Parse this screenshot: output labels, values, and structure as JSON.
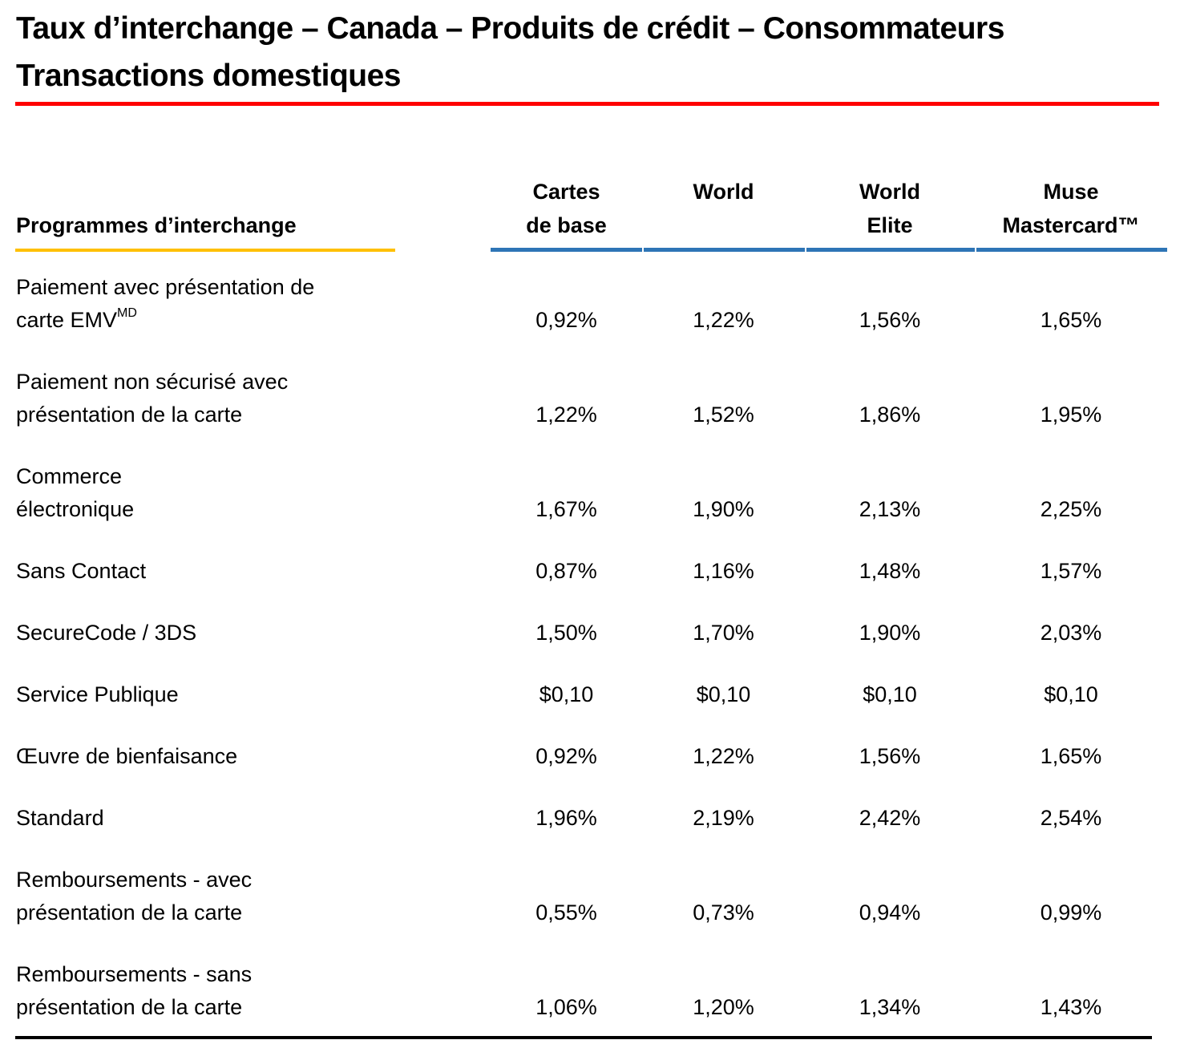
{
  "title": {
    "line1": "Taux d’interchange – Canada – Produits de crédit – Consommateurs",
    "line2": "Transactions domestiques"
  },
  "colors": {
    "title_rule": "#ff0000",
    "label_rule": "#ffc000",
    "column_rule": "#2e75b6",
    "bottom_rule": "#000000",
    "text": "#000000"
  },
  "table": {
    "row_header": "Programmes d’interchange",
    "columns": [
      {
        "label_line1": "Cartes",
        "label_line2": "de base"
      },
      {
        "label_line1": "World",
        "label_line2": ""
      },
      {
        "label_line1": "World",
        "label_line2": "Elite"
      },
      {
        "label_line1": "Muse",
        "label_line2": "Mastercard™"
      }
    ],
    "rows": [
      {
        "label_line1": "Paiement avec présentation de",
        "label_line2": "carte EMV",
        "label_superscript": "MD",
        "values": [
          "0,92%",
          "1,22%",
          "1,56%",
          "1,65%"
        ]
      },
      {
        "label_line1": "Paiement non sécurisé avec",
        "label_line2": "présentation de la carte",
        "values": [
          "1,22%",
          "1,52%",
          "1,86%",
          "1,95%"
        ]
      },
      {
        "label_line1": "Commerce",
        "label_line2": "électronique",
        "values": [
          "1,67%",
          "1,90%",
          "2,13%",
          "2,25%"
        ]
      },
      {
        "label_line1": "Sans Contact",
        "values": [
          "0,87%",
          "1,16%",
          "1,48%",
          "1,57%"
        ]
      },
      {
        "label_line1": "SecureCode / 3DS",
        "values": [
          "1,50%",
          "1,70%",
          "1,90%",
          "2,03%"
        ]
      },
      {
        "label_line1": "Service Publique",
        "values": [
          "$0,10",
          "$0,10",
          "$0,10",
          "$0,10"
        ]
      },
      {
        "label_line1": "Œuvre de bienfaisance",
        "values": [
          "0,92%",
          "1,22%",
          "1,56%",
          "1,65%"
        ]
      },
      {
        "label_line1": "Standard",
        "values": [
          "1,96%",
          "2,19%",
          "2,42%",
          "2,54%"
        ]
      },
      {
        "label_line1": "Remboursements - avec",
        "label_line2": "présentation de la carte",
        "values": [
          "0,55%",
          "0,73%",
          "0,94%",
          "0,99%"
        ]
      },
      {
        "label_line1": "Remboursements - sans",
        "label_line2": "présentation de la carte",
        "values": [
          "1,06%",
          "1,20%",
          "1,34%",
          "1,43%"
        ]
      }
    ]
  }
}
